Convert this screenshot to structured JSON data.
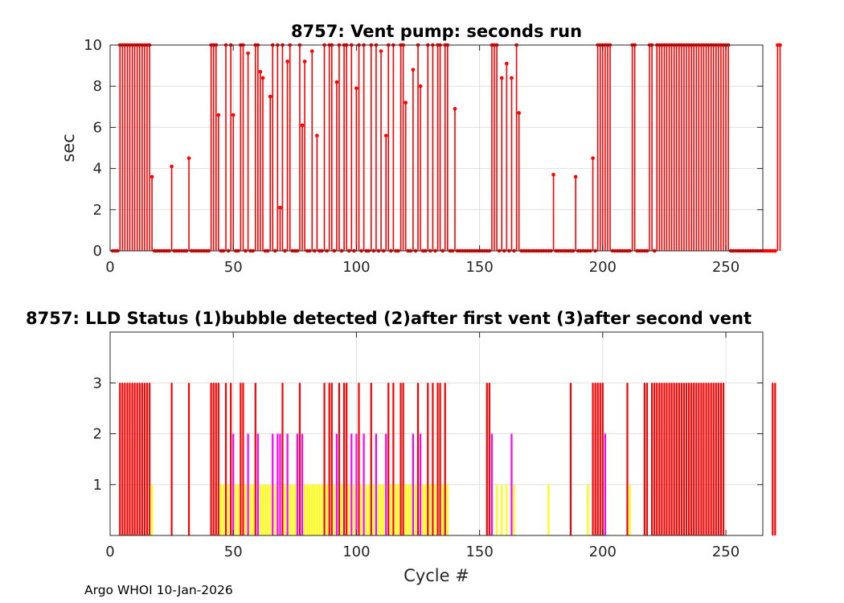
{
  "footer_text": "Argo WHOI 10-Jan-2026",
  "chart_data": [
    {
      "type": "stem",
      "title": "8757: Vent pump: seconds run",
      "xlabel": "",
      "ylabel": "sec",
      "xlim": [
        0,
        265
      ],
      "ylim": [
        0,
        10
      ],
      "xticks": [
        0,
        50,
        100,
        150,
        200,
        250
      ],
      "yticks": [
        0,
        2,
        4,
        6,
        8,
        10
      ],
      "grid": true,
      "color": "#ff0000",
      "x_start": 1,
      "values": [
        0,
        0,
        0,
        10,
        10,
        10,
        10,
        10,
        10,
        10,
        10,
        10,
        10,
        10,
        10,
        10,
        3.6,
        0,
        0,
        0,
        0,
        0,
        0,
        0,
        4.1,
        0,
        0,
        0,
        0,
        0,
        0,
        4.5,
        0,
        0,
        0,
        0,
        0,
        0,
        0,
        0,
        10,
        10,
        10,
        6.6,
        0,
        0,
        10,
        0,
        10,
        6.6,
        0,
        0,
        10,
        10,
        0,
        9.6,
        0,
        0,
        10,
        10,
        8.7,
        8.4,
        0,
        0,
        7.5,
        10,
        0,
        10,
        2.1,
        10,
        0,
        9.2,
        10,
        0,
        0,
        0,
        10,
        6.1,
        9.2,
        0,
        0,
        9.7,
        0,
        5.6,
        0,
        0,
        10,
        0,
        10,
        10,
        0,
        8.2,
        10,
        0,
        10,
        10,
        0,
        10,
        0,
        7.9,
        10,
        0,
        10,
        0,
        0,
        10,
        0,
        10,
        0,
        9.7,
        0,
        5.6,
        10,
        0,
        10,
        0,
        0,
        10,
        10,
        7.2,
        0,
        0,
        8.8,
        0,
        10,
        8.0,
        0,
        0,
        10,
        0,
        10,
        0,
        10,
        10,
        0,
        10,
        10,
        0,
        0,
        6.9,
        0,
        0,
        0,
        0,
        0,
        0,
        0,
        0,
        0,
        0,
        0,
        0,
        0,
        0,
        10,
        10,
        10,
        0,
        8.4,
        0,
        9.1,
        0,
        8.4,
        0,
        10,
        6.7,
        0,
        0,
        0,
        0,
        0,
        0,
        0,
        0,
        0,
        0,
        0,
        0,
        0,
        3.7,
        0,
        0,
        0,
        0,
        0,
        0,
        0,
        0,
        3.6,
        0,
        0,
        0,
        0,
        0,
        0,
        4.5,
        0,
        10,
        10,
        10,
        10,
        10,
        10,
        0,
        0,
        0,
        0,
        0,
        0,
        0,
        0,
        10,
        10,
        0,
        0,
        0,
        0,
        0,
        10,
        10,
        0,
        10,
        10,
        10,
        10,
        10,
        10,
        10,
        10,
        10,
        10,
        10,
        10,
        10,
        10,
        10,
        10,
        10,
        10,
        10,
        10,
        10,
        10,
        10,
        10,
        10,
        10,
        10,
        10,
        10,
        10,
        0,
        0,
        0,
        0,
        0,
        0,
        0,
        0,
        0,
        0,
        0,
        0,
        0,
        0,
        0,
        0,
        0,
        0,
        0,
        10,
        10
      ]
    },
    {
      "type": "bar",
      "title": "8757: LLD Status   (1)bubble detected   (2)after first vent  (3)after second vent",
      "xlabel": "Cycle #",
      "ylabel": "",
      "xlim": [
        0,
        265
      ],
      "ylim": [
        0,
        4
      ],
      "xticks": [
        0,
        50,
        100,
        150,
        200,
        250
      ],
      "yticks": [
        1,
        2,
        3
      ],
      "grid": true,
      "level_colors": {
        "1": "#ffff00",
        "2": "#ff00ff",
        "3": "#ff0000"
      },
      "x_start": 1,
      "values": [
        0,
        0,
        0,
        3,
        3,
        3,
        3,
        3,
        3,
        3,
        3,
        3,
        3,
        3,
        3,
        3,
        1,
        0,
        0,
        0,
        0,
        0,
        0,
        0,
        3,
        0,
        0,
        0,
        0,
        0,
        0,
        3,
        0,
        0,
        0,
        0,
        0,
        0,
        0,
        0,
        3,
        3,
        3,
        3,
        1,
        1,
        3,
        1,
        3,
        2,
        1,
        1,
        3,
        3,
        1,
        2,
        1,
        1,
        3,
        2,
        1,
        1,
        1,
        1,
        1,
        2,
        1,
        2,
        2,
        3,
        1,
        2,
        1,
        1,
        1,
        2,
        3,
        2,
        1,
        1,
        1,
        1,
        1,
        1,
        1,
        1,
        3,
        1,
        3,
        3,
        1,
        2,
        3,
        1,
        3,
        3,
        1,
        2,
        1,
        2,
        3,
        1,
        2,
        1,
        1,
        3,
        1,
        2,
        1,
        1,
        1,
        2,
        3,
        1,
        3,
        1,
        1,
        3,
        3,
        1,
        1,
        1,
        2,
        1,
        3,
        2,
        1,
        1,
        3,
        1,
        3,
        1,
        3,
        3,
        1,
        3,
        1,
        0,
        0,
        0,
        0,
        0,
        0,
        0,
        0,
        0,
        0,
        0,
        0,
        0,
        0,
        0,
        3,
        3,
        2,
        0,
        1,
        0,
        1,
        0,
        1,
        0,
        2,
        1,
        0,
        0,
        0,
        0,
        0,
        0,
        0,
        0,
        0,
        0,
        0,
        0,
        0,
        1,
        0,
        0,
        0,
        0,
        0,
        0,
        0,
        0,
        3,
        0,
        0,
        0,
        0,
        0,
        0,
        1,
        0,
        3,
        3,
        3,
        3,
        3,
        2,
        0,
        0,
        0,
        0,
        0,
        0,
        0,
        0,
        3,
        1,
        0,
        0,
        0,
        0,
        0,
        3,
        3,
        0,
        3,
        3,
        3,
        3,
        3,
        3,
        3,
        3,
        3,
        3,
        3,
        3,
        3,
        3,
        3,
        3,
        3,
        3,
        3,
        3,
        3,
        3,
        3,
        3,
        3,
        3,
        3,
        3,
        3,
        3,
        0,
        0,
        0,
        0,
        0,
        0,
        0,
        0,
        0,
        0,
        0,
        0,
        0,
        0,
        0,
        0,
        0,
        0,
        0,
        3,
        3
      ]
    }
  ]
}
